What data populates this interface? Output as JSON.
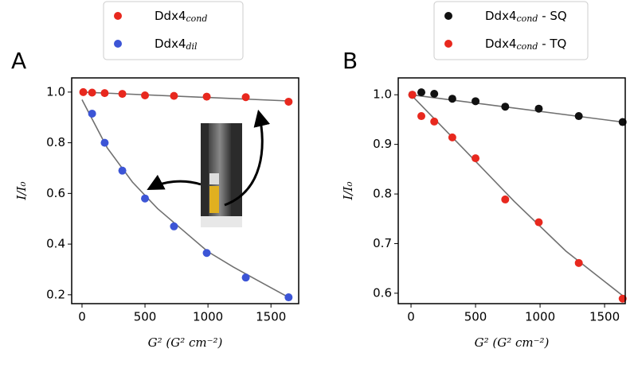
{
  "chart_data": [
    {
      "type": "scatter",
      "panel_label": "A",
      "x_label": "G² (G² cm⁻²)",
      "y_label": "I/I₀",
      "xlim": [
        -82,
        1720
      ],
      "ylim": [
        0.165,
        1.056
      ],
      "xticks": [
        0,
        500,
        1000,
        1500
      ],
      "yticks": [
        0.2,
        0.4,
        0.6,
        0.8,
        {
          "value": 1.0,
          "label": "1.0"
        }
      ],
      "series": [
        {
          "name": "Ddx4",
          "subscript": "cond",
          "color": "#e8281e",
          "x": [
            10,
            80,
            180,
            320,
            500,
            730,
            990,
            1300,
            1640
          ],
          "values": [
            1.0,
            0.998,
            0.996,
            0.993,
            0.987,
            0.985,
            0.982,
            0.98,
            0.962
          ]
        },
        {
          "name": "Ddx4",
          "subscript": "dil",
          "color": "#3c55d6",
          "x": [
            80,
            180,
            320,
            500,
            730,
            990,
            1300,
            1640
          ],
          "values": [
            0.915,
            0.8,
            0.69,
            0.58,
            0.47,
            0.365,
            0.268,
            0.19
          ]
        }
      ],
      "fit_lines": [
        {
          "color": "#707070",
          "x": [
            0,
            1640
          ],
          "values": [
            1.0,
            0.965
          ]
        },
        {
          "color": "#707070",
          "x": [
            0,
            200,
            400,
            600,
            800,
            1000,
            1200,
            1400,
            1640
          ],
          "values": [
            0.97,
            0.78,
            0.645,
            0.54,
            0.455,
            0.37,
            0.31,
            0.255,
            0.19
          ]
        }
      ]
    },
    {
      "type": "scatter",
      "panel_label": "B",
      "x_label": "G² (G² cm⁻²)",
      "y_label": "I/I₀",
      "xlim": [
        -99,
        1660
      ],
      "ylim": [
        0.579,
        1.034
      ],
      "xticks": [
        0,
        500,
        1000,
        1500
      ],
      "yticks": [
        0.6,
        0.7,
        0.8,
        0.9,
        {
          "value": 1.0,
          "label": "1.0"
        }
      ],
      "series": [
        {
          "name": "Ddx4",
          "subscript": "cond",
          "suffix": " - SQ",
          "color": "#111111",
          "x": [
            10,
            80,
            180,
            320,
            500,
            730,
            990,
            1300,
            1640
          ],
          "values": [
            1.0,
            1.005,
            1.002,
            0.992,
            0.987,
            0.976,
            0.972,
            0.957,
            0.945
          ]
        },
        {
          "name": "Ddx4",
          "subscript": "cond",
          "suffix": " - TQ",
          "color": "#e8281e",
          "x": [
            10,
            80,
            180,
            320,
            500,
            730,
            990,
            1300,
            1640
          ],
          "values": [
            1.0,
            0.957,
            0.946,
            0.914,
            0.872,
            0.789,
            0.743,
            0.661,
            0.589
          ]
        }
      ],
      "fit_lines": [
        {
          "color": "#707070",
          "x": [
            0,
            1640
          ],
          "values": [
            1.0,
            0.945
          ]
        },
        {
          "color": "#707070",
          "x": [
            0,
            400,
            800,
            1200,
            1640
          ],
          "values": [
            1.0,
            0.893,
            0.785,
            0.685,
            0.595
          ]
        }
      ]
    }
  ]
}
